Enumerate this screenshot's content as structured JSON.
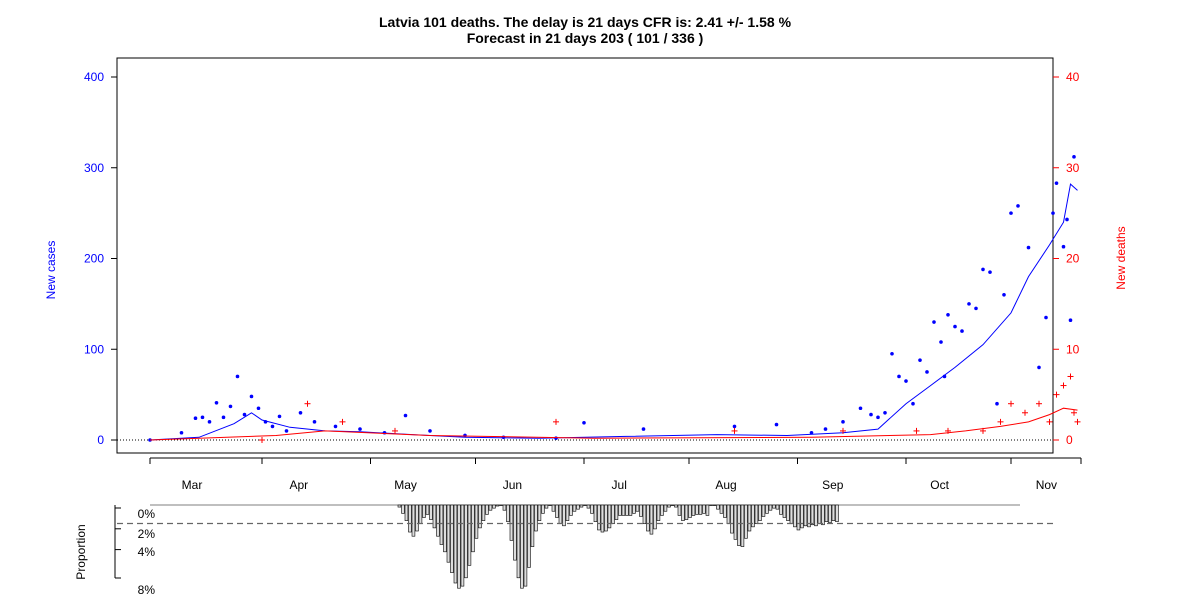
{
  "chart_data": [
    {
      "type": "scatter",
      "title": "Latvia 101 deaths. The delay is 21 days CFR is: 2.41 +/- 1.58 %",
      "subtitle": "Forecast in 21 days 203 ( 101 / 336 )",
      "ylabel": "New cases",
      "y2label": "New deaths",
      "ylim": [
        0,
        400
      ],
      "y2lim": [
        0,
        40
      ],
      "y_ticks": [
        "0",
        "100",
        "200",
        "300",
        "400"
      ],
      "y2_ticks": [
        "0",
        "10",
        "20",
        "30",
        "40"
      ],
      "x_months": [
        "Mar",
        "Apr",
        "May",
        "Jun",
        "Jul",
        "Aug",
        "Sep",
        "Oct",
        "Nov"
      ],
      "colors": {
        "cases": "#0000ff",
        "deaths": "#ff0000",
        "forecast": "#333333"
      },
      "series": [
        {
          "name": "",
          "color": "#0000ff",
          "marker": "dot",
          "x": [
            "2020-02-25",
            "2020-03-05",
            "2020-03-09",
            "2020-03-11",
            "2020-03-13",
            "2020-03-15",
            "2020-03-17",
            "2020-03-19",
            "2020-03-21",
            "2020-03-23",
            "2020-03-25",
            "2020-03-27",
            "2020-03-29",
            "2020-03-31",
            "2020-04-02",
            "2020-04-04",
            "2020-04-08",
            "2020-04-12",
            "2020-04-18",
            "2020-04-25",
            "2020-05-02",
            "2020-05-08",
            "2020-05-15",
            "2020-05-25",
            "2020-06-05",
            "2020-06-20",
            "2020-06-28",
            "2020-07-15",
            "2020-08-10",
            "2020-08-22",
            "2020-09-01",
            "2020-09-05",
            "2020-09-10",
            "2020-09-15",
            "2020-09-18",
            "2020-09-20",
            "2020-09-22",
            "2020-09-24",
            "2020-09-26",
            "2020-09-28",
            "2020-09-30",
            "2020-10-02",
            "2020-10-04",
            "2020-10-06",
            "2020-10-08",
            "2020-10-09",
            "2020-10-10",
            "2020-10-12",
            "2020-10-14",
            "2020-10-16",
            "2020-10-18",
            "2020-10-20",
            "2020-10-22",
            "2020-10-24",
            "2020-10-26",
            "2020-10-28",
            "2020-10-30",
            "2020-11-02",
            "2020-11-05",
            "2020-11-07",
            "2020-11-09",
            "2020-11-10",
            "2020-11-12",
            "2020-11-13",
            "2020-11-14",
            "2020-11-15"
          ],
          "y": [
            0,
            8,
            24,
            25,
            20,
            41,
            25,
            37,
            70,
            28,
            48,
            35,
            20,
            15,
            26,
            10,
            30,
            20,
            15,
            12,
            8,
            27,
            10,
            5,
            3,
            2,
            19,
            12,
            15,
            17,
            8,
            12,
            20,
            35,
            28,
            25,
            30,
            95,
            70,
            65,
            40,
            88,
            75,
            130,
            108,
            70,
            138,
            125,
            120,
            150,
            145,
            188,
            185,
            40,
            160,
            250,
            258,
            212,
            80,
            135,
            250,
            283,
            213,
            243,
            132,
            312
          ],
          "note": "daily new cases (points; partial estimate)"
        },
        {
          "name": "",
          "color": "#0000ff",
          "marker": "line",
          "x": [
            "2020-02-25",
            "2020-03-10",
            "2020-03-20",
            "2020-03-25",
            "2020-03-28",
            "2020-04-05",
            "2020-04-15",
            "2020-04-25",
            "2020-05-10",
            "2020-05-25",
            "2020-06-15",
            "2020-07-10",
            "2020-08-05",
            "2020-08-25",
            "2020-09-10",
            "2020-09-20",
            "2020-09-28",
            "2020-10-05",
            "2020-10-12",
            "2020-10-20",
            "2020-10-28",
            "2020-11-02",
            "2020-11-08",
            "2020-11-12",
            "2020-11-14",
            "2020-11-16"
          ],
          "y": [
            0,
            3,
            18,
            30,
            22,
            14,
            10,
            9,
            6,
            3,
            2,
            4,
            6,
            5,
            8,
            12,
            40,
            60,
            80,
            105,
            140,
            180,
            215,
            240,
            282,
            275
          ]
        },
        {
          "name": "",
          "color": "#ff0000",
          "marker": "plus",
          "axis": "y2",
          "x": [
            "2020-03-28",
            "2020-04-10",
            "2020-04-20",
            "2020-05-05",
            "2020-06-20",
            "2020-08-10",
            "2020-09-10",
            "2020-10-01",
            "2020-10-10",
            "2020-10-20",
            "2020-10-25",
            "2020-10-28",
            "2020-11-01",
            "2020-11-05",
            "2020-11-08",
            "2020-11-10",
            "2020-11-12",
            "2020-11-14",
            "2020-11-15",
            "2020-11-16"
          ],
          "y": [
            0,
            4,
            2,
            1,
            2,
            1,
            1,
            1,
            1,
            1,
            2,
            4,
            3,
            4,
            2,
            5,
            6,
            7,
            3,
            2
          ]
        },
        {
          "name": "",
          "color": "#ff0000",
          "marker": "line",
          "axis": "y2",
          "x": [
            "2020-02-25",
            "2020-04-01",
            "2020-04-15",
            "2020-05-15",
            "2020-07-01",
            "2020-09-01",
            "2020-10-05",
            "2020-10-15",
            "2020-10-25",
            "2020-11-02",
            "2020-11-08",
            "2020-11-12",
            "2020-11-16"
          ],
          "y": [
            0,
            0.5,
            1,
            0.5,
            0.2,
            0.3,
            0.6,
            1,
            1.5,
            2,
            2.8,
            3.5,
            3.3
          ]
        }
      ]
    },
    {
      "type": "bar",
      "ylabel": "Proportion",
      "y_ticks": [
        "0%",
        "2%",
        "4%",
        "8%"
      ],
      "reference_line": "2%",
      "bars_pct": [
        0.2,
        0.8,
        1.5,
        2.6,
        3.0,
        2.5,
        1.8,
        1.2,
        0.9,
        1.4,
        2.2,
        3.0,
        3.8,
        4.5,
        5.5,
        6.5,
        7.5,
        8.0,
        7.8,
        7.0,
        5.8,
        4.5,
        3.2,
        2.2,
        1.5,
        0.9,
        0.5,
        0.3,
        0.1,
        0.0,
        0.5,
        1.6,
        3.4,
        5.3,
        7.0,
        8.0,
        7.8,
        6.0,
        4.0,
        2.5,
        1.5,
        0.8,
        0.3,
        0.0,
        0.6,
        1.2,
        1.8,
        2.0,
        1.5,
        1.0,
        0.6,
        0.4,
        0.2,
        0.0,
        0.3,
        0.8,
        1.6,
        2.4,
        2.6,
        2.5,
        2.2,
        1.8,
        1.4,
        1.0,
        1.0,
        1.0,
        1.0,
        0.8,
        0.6,
        1.1,
        1.8,
        2.5,
        2.8,
        2.3,
        1.5,
        1.0,
        0.6,
        0.2,
        0.0,
        0.2,
        1.0,
        1.5,
        1.4,
        1.2,
        1.0,
        0.9,
        0.9,
        0.8,
        1.0,
        0.0,
        0.0,
        0.4,
        0.8,
        1.2,
        1.8,
        2.7,
        3.3,
        3.9,
        4.0,
        3.2,
        2.5,
        2.1,
        1.8,
        1.5,
        1.1,
        0.8,
        0.5,
        0.3,
        0.4,
        0.9,
        1.2,
        1.5,
        1.8,
        2.1,
        2.4,
        2.2,
        2.0,
        2.1,
        1.9,
        2.0,
        1.8,
        1.9,
        1.6,
        1.7,
        1.5,
        1.6
      ]
    }
  ]
}
